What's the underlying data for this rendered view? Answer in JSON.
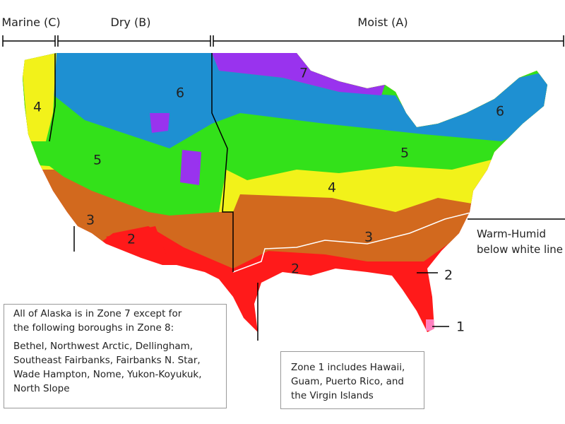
{
  "header": {
    "regions": [
      "Marine (C)",
      "Dry (B)",
      "Moist (A)"
    ]
  },
  "zone_labels": [
    "7",
    "6",
    "6",
    "5",
    "5",
    "4",
    "4",
    "3",
    "3",
    "2",
    "2",
    "2",
    "1"
  ],
  "annotations": {
    "warm_humid": [
      "Warm-Humid",
      "below white line"
    ]
  },
  "notes": {
    "alaska": {
      "intro": [
        "All of Alaska is in Zone 7 except for",
        "the following boroughs in Zone 8:"
      ],
      "boroughs": [
        "Bethel, Northwest Arctic, Dellingham,",
        "Southeast Fairbanks, Fairbanks N. Star,",
        "Wade Hampton, Nome, Yukon-Koyukuk,",
        "North Slope"
      ]
    },
    "zone1": [
      "Zone 1 includes Hawaii,",
      "Guam, Puerto Rico, and",
      "the Virgin Islands"
    ]
  }
}
